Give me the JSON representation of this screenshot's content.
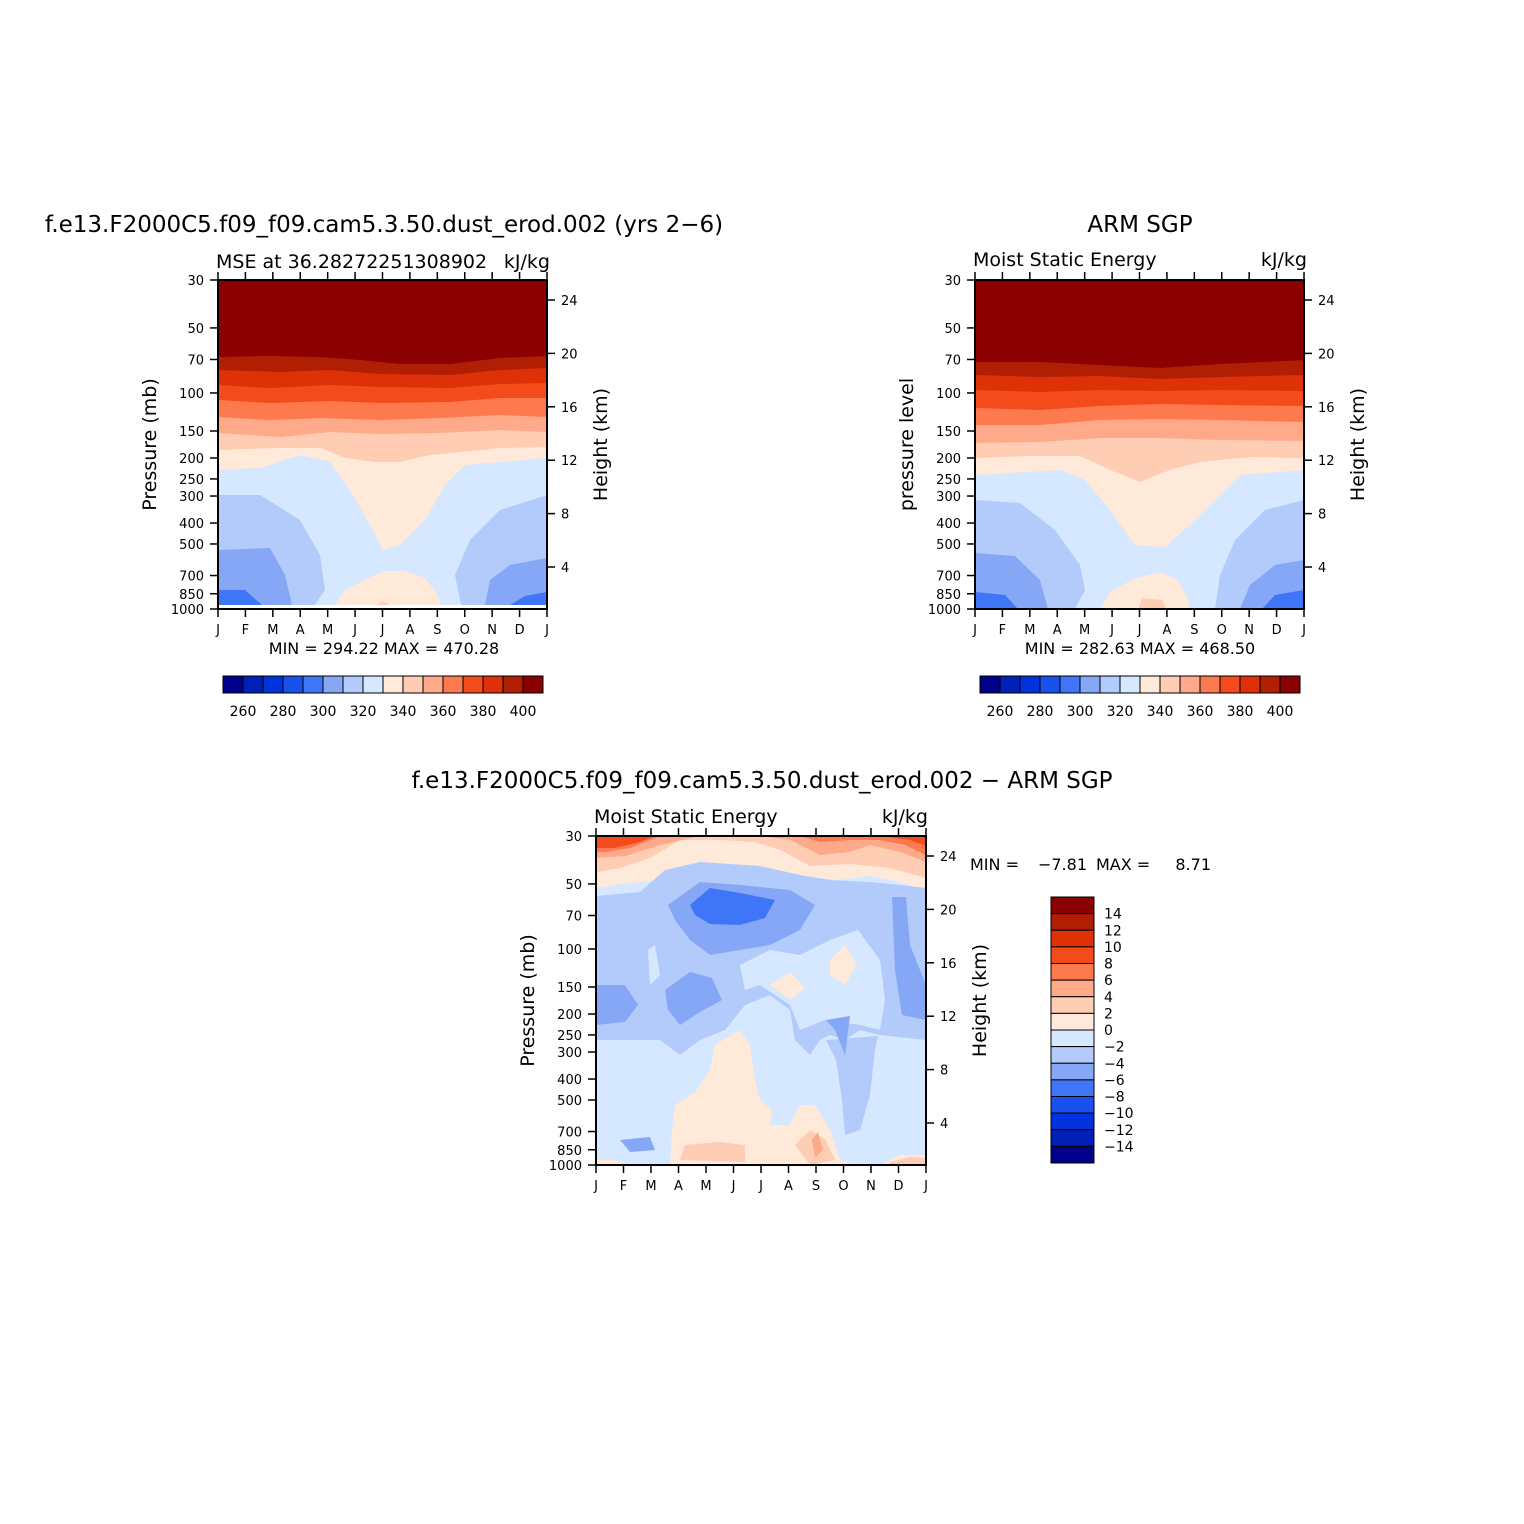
{
  "chart_data": [
    {
      "type": "heatmap",
      "id": "model",
      "title": "f.e13.F2000C5.f09_f09.cam5.3.50.dust_erod.002 (yrs 2−6)",
      "subtitle_left": "MSE at 36.28272251308902",
      "subtitle_right": "kJ/kg",
      "ylabel": "Pressure (mb)",
      "ylabel_right": "Height (km)",
      "x_ticks": [
        "J",
        "F",
        "M",
        "A",
        "M",
        "J",
        "J",
        "A",
        "S",
        "O",
        "N",
        "D",
        "J"
      ],
      "y_ticks": [
        "30",
        "50",
        "70",
        "100",
        "150",
        "200",
        "250",
        "300",
        "400",
        "500",
        "700",
        "850",
        "1000"
      ],
      "y_right_ticks": [
        "24",
        "20",
        "16",
        "12",
        "8",
        "4"
      ],
      "stats": "MIN = 294.22 MAX = 470.28",
      "colorbar_labels": [
        "260",
        "280",
        "300",
        "320",
        "340",
        "360",
        "380",
        "400"
      ]
    },
    {
      "type": "heatmap",
      "id": "obs",
      "title": "ARM SGP",
      "subtitle_left": "Moist Static Energy",
      "subtitle_right": "kJ/kg",
      "ylabel": "pressure level",
      "ylabel_right": "Height (km)",
      "x_ticks": [
        "J",
        "F",
        "M",
        "A",
        "M",
        "J",
        "J",
        "A",
        "S",
        "O",
        "N",
        "D",
        "J"
      ],
      "y_ticks": [
        "30",
        "50",
        "70",
        "100",
        "150",
        "200",
        "250",
        "300",
        "400",
        "500",
        "700",
        "850",
        "1000"
      ],
      "y_right_ticks": [
        "24",
        "20",
        "16",
        "12",
        "8",
        "4"
      ],
      "stats": "MIN = 282.63 MAX = 468.50",
      "colorbar_labels": [
        "260",
        "280",
        "300",
        "320",
        "340",
        "360",
        "380",
        "400"
      ]
    },
    {
      "type": "heatmap",
      "id": "diff",
      "title": "f.e13.F2000C5.f09_f09.cam5.3.50.dust_erod.002 − ARM SGP",
      "subtitle_left": "Moist Static Energy",
      "subtitle_right": "kJ/kg",
      "ylabel": "Pressure (mb)",
      "ylabel_right": "Height (km)",
      "x_ticks": [
        "J",
        "F",
        "M",
        "A",
        "M",
        "J",
        "J",
        "A",
        "S",
        "O",
        "N",
        "D",
        "J"
      ],
      "y_ticks": [
        "30",
        "50",
        "70",
        "100",
        "150",
        "200",
        "250",
        "300",
        "400",
        "500",
        "700",
        "850",
        "1000"
      ],
      "y_right_ticks": [
        "24",
        "20",
        "16",
        "12",
        "8",
        "4"
      ],
      "stats_min_label": "MIN =",
      "stats_min": "−7.81",
      "stats_max_label": "MAX =",
      "stats_max": "8.71",
      "colorbar_labels": [
        "14",
        "12",
        "10",
        "8",
        "6",
        "4",
        "2",
        "0",
        "−2",
        "−4",
        "−6",
        "−8",
        "−10",
        "−12",
        "−14"
      ]
    }
  ],
  "palette": [
    "#00008b",
    "#0020b8",
    "#0033dd",
    "#1a50ee",
    "#3f76f7",
    "#85a7f6",
    "#b3cbfa",
    "#d6e8ff",
    "#ffe9d8",
    "#ffcdb4",
    "#fea989",
    "#fd7a4f",
    "#f44b1c",
    "#de3108",
    "#b01e04",
    "#8b0000"
  ]
}
